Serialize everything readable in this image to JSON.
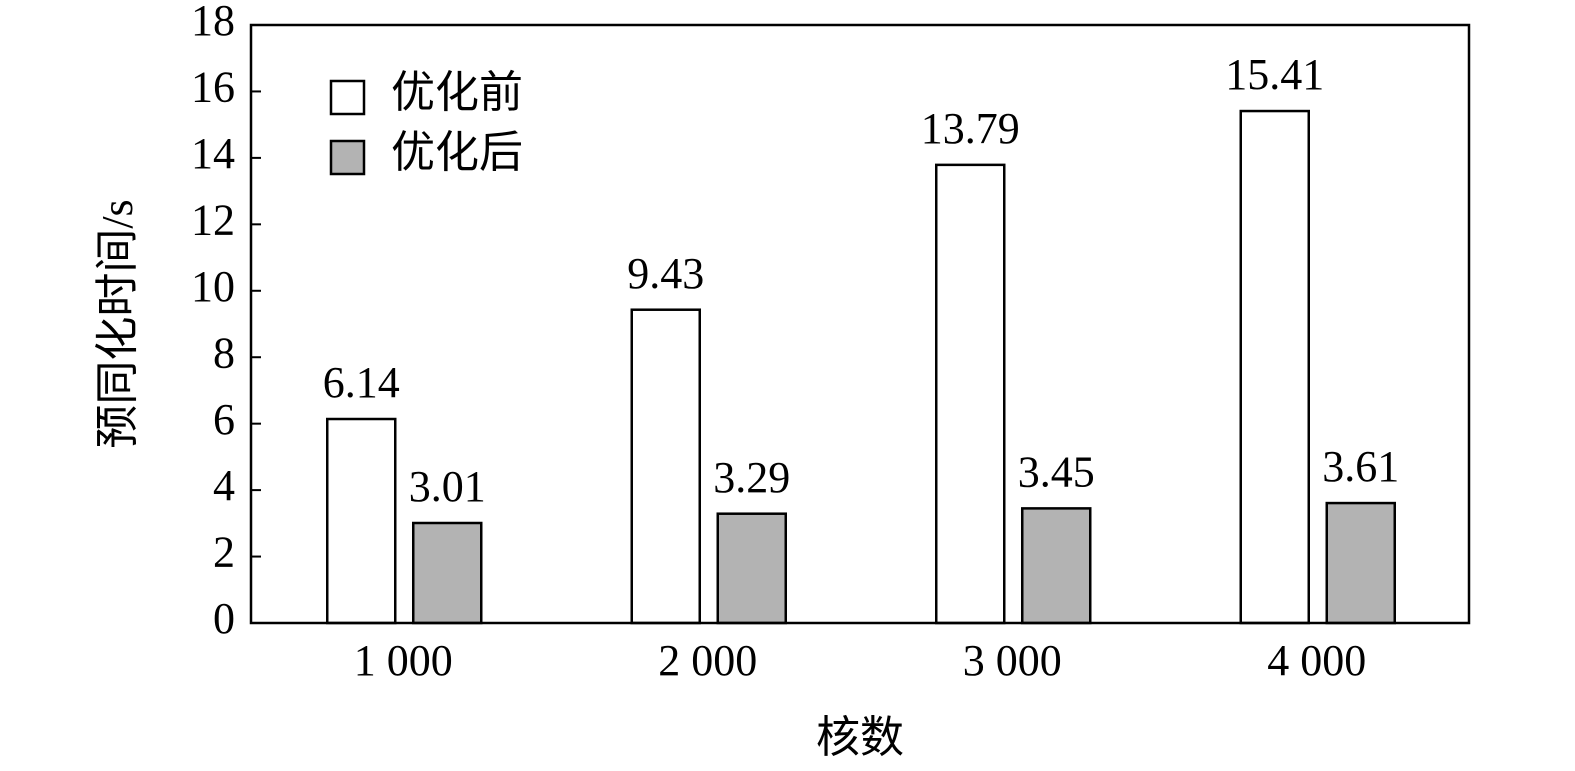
{
  "chart_data": {
    "type": "bar",
    "x_label": "核数",
    "y_label": "预同化时间/s",
    "categories": [
      "1 000",
      "2 000",
      "3 000",
      "4 000"
    ],
    "series": [
      {
        "name": "优化前",
        "color": "#ffffff",
        "values": [
          6.14,
          9.43,
          13.79,
          15.41
        ]
      },
      {
        "name": "优化后",
        "color": "#b3b3b3",
        "values": [
          3.01,
          3.29,
          3.45,
          3.61
        ]
      }
    ],
    "ylim": [
      0,
      18
    ],
    "yticks": [
      0,
      2,
      4,
      6,
      8,
      10,
      12,
      14,
      16,
      18
    ],
    "legend": "top-left",
    "grid": false
  }
}
